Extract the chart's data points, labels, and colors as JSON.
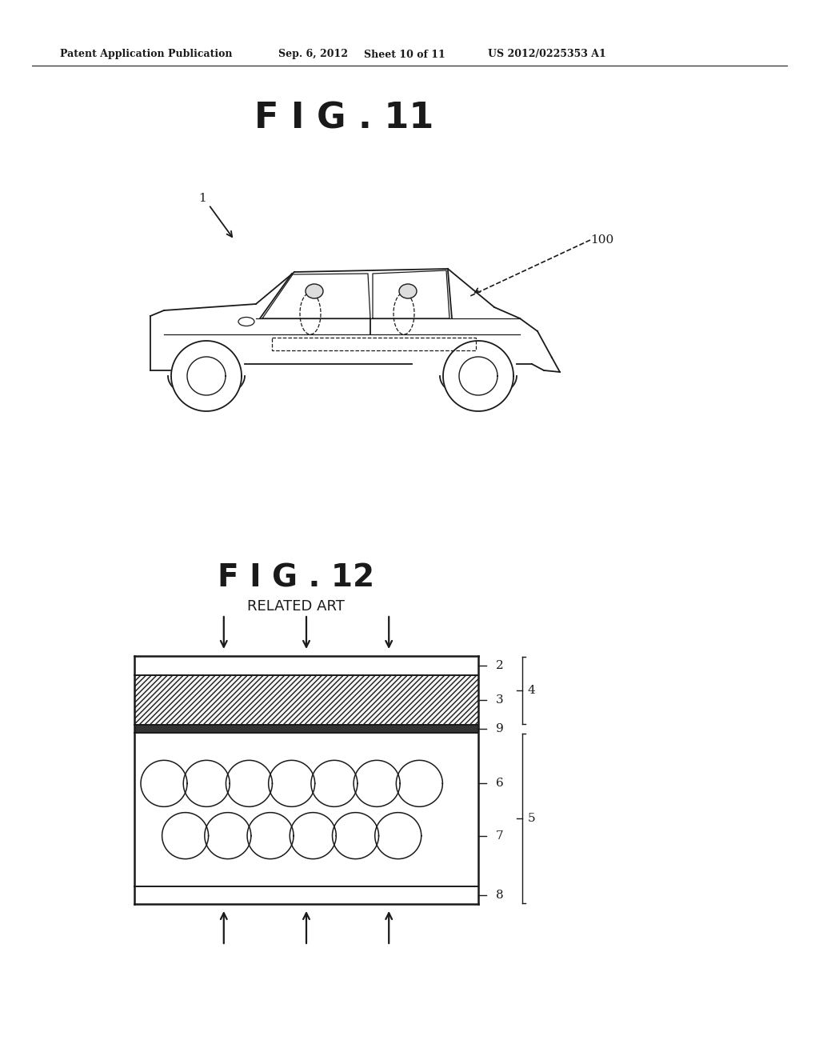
{
  "bg_color": "#ffffff",
  "header_text": "Patent Application Publication",
  "header_date": "Sep. 6, 2012",
  "header_sheet": "Sheet 10 of 11",
  "header_patent": "US 2012/0225353 A1",
  "fig11_title": "F I G . 11",
  "fig12_title": "F I G . 12",
  "fig12_subtitle": "RELATED ART",
  "label_1": "1",
  "label_100": "100",
  "label_2": "2",
  "label_3": "3",
  "label_4": "4",
  "label_5": "5",
  "label_6": "6",
  "label_7": "7",
  "label_8": "8",
  "label_9": "9",
  "line_color": "#1a1a1a",
  "text_color": "#1a1a1a"
}
